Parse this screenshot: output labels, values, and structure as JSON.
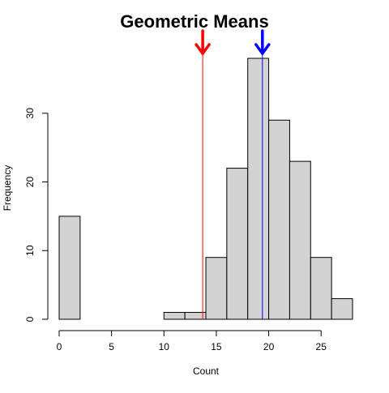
{
  "chart_data": {
    "type": "bar",
    "title": "Geometric Means",
    "xlabel": "Count",
    "ylabel": "Frequency",
    "bins": [
      {
        "start": 0,
        "end": 2,
        "count": 15
      },
      {
        "start": 2,
        "end": 4,
        "count": 0
      },
      {
        "start": 4,
        "end": 6,
        "count": 0
      },
      {
        "start": 6,
        "end": 8,
        "count": 0
      },
      {
        "start": 8,
        "end": 10,
        "count": 0
      },
      {
        "start": 10,
        "end": 12,
        "count": 1
      },
      {
        "start": 12,
        "end": 14,
        "count": 1
      },
      {
        "start": 14,
        "end": 16,
        "count": 9
      },
      {
        "start": 16,
        "end": 18,
        "count": 22
      },
      {
        "start": 18,
        "end": 20,
        "count": 38
      },
      {
        "start": 20,
        "end": 22,
        "count": 29
      },
      {
        "start": 22,
        "end": 24,
        "count": 23
      },
      {
        "start": 24,
        "end": 26,
        "count": 9
      },
      {
        "start": 26,
        "end": 28,
        "count": 3
      }
    ],
    "xlim": [
      0,
      28
    ],
    "ylim": [
      0,
      38
    ],
    "xticks": [
      "0",
      "5",
      "10",
      "15",
      "20",
      "25"
    ],
    "yticks": [
      "0",
      "10",
      "20",
      "30"
    ],
    "bar_color": "#d3d3d3",
    "reference_lines": [
      {
        "x": 13.7,
        "color": "#ff0000",
        "arrow": true
      },
      {
        "x": 19.4,
        "color": "#0000ff",
        "arrow": true
      }
    ]
  }
}
